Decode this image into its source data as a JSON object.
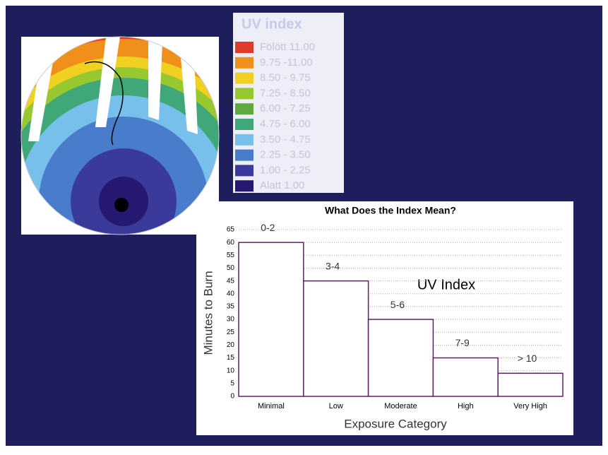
{
  "legend_panel": {
    "title": "UV index",
    "items": [
      {
        "label": "Fölött 11.00",
        "color": "#e03a2a"
      },
      {
        "label": "9.75 -11.00",
        "color": "#f0901a"
      },
      {
        "label": "8.50 - 9.75",
        "color": "#f0d020"
      },
      {
        "label": "7.25 - 8.50",
        "color": "#98c830"
      },
      {
        "label": "6.00 - 7.25",
        "color": "#60a840"
      },
      {
        "label": "4.75 - 6.00",
        "color": "#40a878"
      },
      {
        "label": "3.50 - 4.75",
        "color": "#78c0ec"
      },
      {
        "label": "2.25 - 3.50",
        "color": "#4a7ccc"
      },
      {
        "label": "1.00 - 2.25",
        "color": "#3a3a9a"
      },
      {
        "label": "Alatt 1.00",
        "color": "#241870"
      }
    ]
  },
  "chart_data": {
    "type": "bar",
    "title": "What Does the Index Mean?",
    "annotation": "UV Index",
    "x_label": "Exposure Category",
    "y_label": "Minutes to Burn",
    "categories": [
      "Minimal",
      "Low",
      "Moderate",
      "High",
      "Very High"
    ],
    "values": [
      60,
      45,
      30,
      15,
      9
    ],
    "bar_labels": [
      "0-2",
      "3-4",
      "5-6",
      "7-9",
      "> 10"
    ],
    "color": "#ffffff",
    "edge_color": "#602060",
    "ylim": [
      0,
      65
    ],
    "yticks": [
      0,
      5,
      10,
      15,
      20,
      25,
      30,
      35,
      40,
      45,
      50,
      55,
      60,
      65
    ],
    "grid": true
  }
}
